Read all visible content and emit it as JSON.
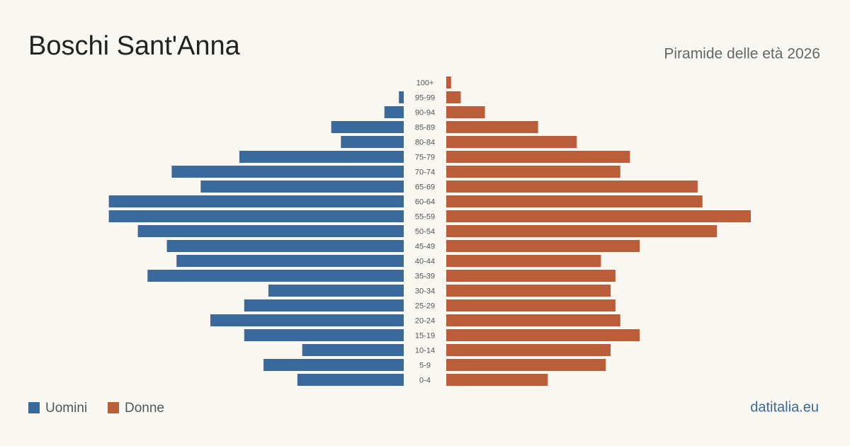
{
  "chart_data": {
    "type": "pyramid",
    "title": "Boschi Sant'Anna",
    "subtitle": "Piramide delle età 2026",
    "source": "datitalia.eu",
    "categories": [
      "100+",
      "95-99",
      "90-94",
      "85-89",
      "80-84",
      "75-79",
      "70-74",
      "65-69",
      "60-64",
      "55-59",
      "50-54",
      "45-49",
      "40-44",
      "35-39",
      "30-34",
      "25-29",
      "20-24",
      "15-19",
      "10-14",
      "5-9",
      "0-4"
    ],
    "series": [
      {
        "name": "Uomini",
        "color": "#3a6a9b",
        "values": [
          0,
          1,
          4,
          15,
          13,
          34,
          48,
          42,
          61,
          61,
          55,
          49,
          47,
          53,
          28,
          33,
          40,
          33,
          21,
          29,
          22
        ]
      },
      {
        "name": "Donne",
        "color": "#b95d3b",
        "values": [
          1,
          3,
          8,
          19,
          27,
          38,
          36,
          52,
          53,
          63,
          56,
          40,
          32,
          35,
          34,
          35,
          36,
          40,
          34,
          33,
          21
        ]
      }
    ]
  }
}
